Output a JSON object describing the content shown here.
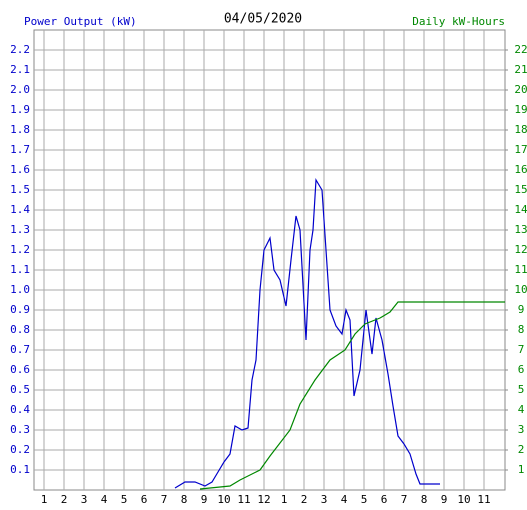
{
  "chart_data": {
    "type": "line",
    "title": "04/05/2020",
    "ylabel": "Power Output (kW)",
    "y2label": "Daily kW-Hours",
    "xlim": [
      0.5,
      24.05
    ],
    "ylim": [
      0,
      2.3
    ],
    "y2lim": [
      0,
      23
    ],
    "grid": true,
    "xticks": [
      1,
      2,
      3,
      4,
      5,
      6,
      7,
      8,
      9,
      10,
      11,
      {
        "value": 12,
        "label": "12"
      },
      {
        "value": 13,
        "label": "1"
      },
      {
        "value": 14,
        "label": "2"
      },
      {
        "value": 15,
        "label": "3"
      },
      {
        "value": 16,
        "label": "4"
      },
      {
        "value": 17,
        "label": "5"
      },
      {
        "value": 18,
        "label": "6"
      },
      {
        "value": 19,
        "label": "7"
      },
      {
        "value": 20,
        "label": "8"
      },
      {
        "value": 21,
        "label": "9"
      },
      {
        "value": 22,
        "label": "10"
      },
      {
        "value": 23,
        "label": "11"
      }
    ],
    "yticks": [
      0.1,
      0.2,
      0.3,
      0.4,
      0.5,
      0.6,
      0.7,
      0.8,
      0.9,
      {
        "value": 1.0,
        "label": "1.0"
      },
      1.1,
      1.2,
      1.3,
      1.4,
      1.5,
      1.6,
      1.7,
      1.8,
      1.9,
      {
        "value": 2.0,
        "label": "2.0"
      },
      2.1,
      2.2
    ],
    "y2ticks": [
      1,
      2,
      3,
      4,
      5,
      6,
      7,
      8,
      9,
      10,
      11,
      12,
      13,
      14,
      15,
      16,
      17,
      18,
      19,
      20,
      21,
      22
    ],
    "series": [
      {
        "color": "#0000cc",
        "axis": "y",
        "x": [
          7.55,
          8.05,
          8.55,
          9.05,
          9.4,
          9.7,
          10.0,
          10.3,
          10.55,
          10.9,
          11.2,
          11.4,
          11.6,
          11.8,
          12.0,
          12.3,
          12.5,
          12.8,
          13.1,
          13.35,
          13.6,
          13.8,
          14.1,
          14.3,
          14.45,
          14.6,
          14.9,
          15.1,
          15.3,
          15.6,
          15.9,
          16.1,
          16.3,
          16.5,
          16.8,
          17.1,
          17.4,
          17.6,
          17.9,
          18.2,
          18.45,
          18.7,
          19.0,
          19.3,
          19.6,
          19.8,
          20.8
        ],
        "values": [
          0.01,
          0.04,
          0.04,
          0.02,
          0.04,
          0.09,
          0.14,
          0.18,
          0.32,
          0.3,
          0.31,
          0.55,
          0.65,
          1.0,
          1.2,
          1.26,
          1.1,
          1.05,
          0.92,
          1.15,
          1.37,
          1.3,
          0.75,
          1.2,
          1.3,
          1.55,
          1.5,
          1.2,
          0.9,
          0.82,
          0.78,
          0.9,
          0.85,
          0.47,
          0.6,
          0.9,
          0.68,
          0.86,
          0.75,
          0.58,
          0.42,
          0.27,
          0.23,
          0.18,
          0.08,
          0.03,
          0.03
        ]
      },
      {
        "color": "#008800",
        "axis": "y2",
        "x": [
          8.8,
          10.3,
          10.8,
          11.8,
          12.3,
          13.3,
          13.8,
          14.55,
          15.3,
          16.05,
          16.55,
          17.05,
          17.8,
          18.3,
          18.7,
          19.8,
          24.05
        ],
        "values": [
          0.05,
          0.2,
          0.5,
          1.0,
          1.7,
          3.0,
          4.3,
          5.5,
          6.5,
          7.0,
          7.8,
          8.3,
          8.6,
          8.9,
          9.4,
          9.4,
          9.4
        ]
      }
    ]
  }
}
